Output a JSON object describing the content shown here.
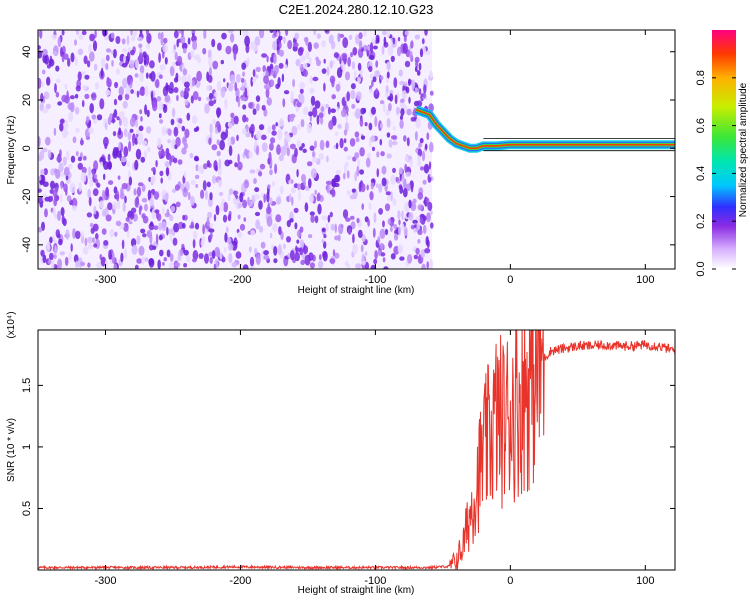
{
  "title": "C2E1.2024.280.12.10.G23",
  "chart_data": [
    {
      "type": "heatmap",
      "xlabel": "Height of straight line (km)",
      "ylabel": "Frequency (Hz)",
      "xlim": [
        -350,
        122
      ],
      "ylim": [
        -50,
        49
      ],
      "x_ticks": [
        -300,
        -200,
        -100,
        0,
        100
      ],
      "y_ticks": [
        -40,
        -20,
        0,
        20,
        40
      ],
      "colorbar": {
        "label": "Normalized spectral amplitude",
        "range": [
          0,
          1
        ],
        "ticks": [
          "0.0",
          "0.2",
          "0.4",
          "0.6",
          "0.8"
        ],
        "tick_values": [
          0.0,
          0.2,
          0.4,
          0.6,
          0.8
        ]
      },
      "noise_region_x": [
        -350,
        -58
      ],
      "signal_trace": {
        "x": [
          -70,
          -60,
          -55,
          -50,
          -45,
          -40,
          -35,
          -30,
          -25,
          -20,
          -10,
          0,
          20,
          40,
          60,
          80,
          95,
          110,
          122
        ],
        "y": [
          16,
          14,
          10,
          7,
          4,
          2,
          1,
          0,
          0,
          1,
          1,
          1.5,
          1.5,
          1.5,
          1.5,
          1.5,
          1.5,
          1.5,
          1.5
        ]
      }
    },
    {
      "type": "line",
      "xlabel": "Height of straight line (km)",
      "ylabel": "SNR (10 * v/v)",
      "y_scale_label": "(x10⁴)",
      "xlim": [
        -350,
        122
      ],
      "ylim": [
        0,
        1.95
      ],
      "x_ticks": [
        -300,
        -200,
        -100,
        0,
        100
      ],
      "y_ticks": [
        "0.5",
        "1",
        "1.5"
      ],
      "y_tick_values": [
        0.5,
        1.0,
        1.5
      ],
      "series": [
        {
          "color": "#e8332b",
          "x": [
            -350,
            -300,
            -250,
            -200,
            -150,
            -100,
            -60,
            -45,
            -40,
            -35,
            -30,
            -25,
            -20,
            -15,
            -10,
            -5,
            0,
            5,
            10,
            15,
            20,
            25,
            30,
            40,
            50,
            60,
            70,
            80,
            90,
            100,
            110,
            122
          ],
          "y": [
            0.02,
            0.02,
            0.02,
            0.025,
            0.02,
            0.02,
            0.02,
            0.03,
            0.08,
            0.2,
            0.45,
            0.7,
            0.95,
            1.1,
            1.25,
            1.2,
            1.3,
            1.35,
            1.45,
            1.55,
            1.65,
            1.72,
            1.78,
            1.8,
            1.82,
            1.82,
            1.83,
            1.82,
            1.82,
            1.83,
            1.82,
            1.78
          ]
        }
      ]
    }
  ]
}
